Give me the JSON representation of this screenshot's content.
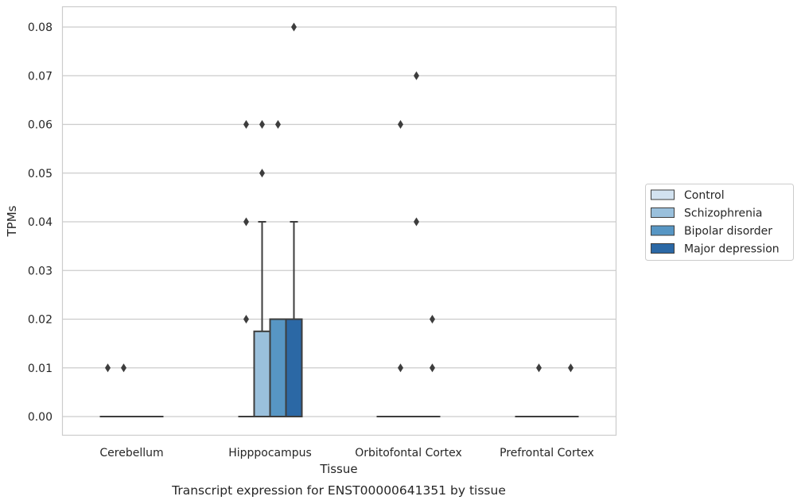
{
  "chart_data": {
    "type": "box",
    "title": "Transcript expression for ENST00000641351 by tissue",
    "xlabel": "Tissue",
    "ylabel": "TPMs",
    "categories": [
      "Cerebellum",
      "Hipppocampus",
      "Orbitofontal Cortex",
      "Prefrontal Cortex"
    ],
    "yticks": [
      "0.00",
      "0.01",
      "0.02",
      "0.03",
      "0.04",
      "0.05",
      "0.06",
      "0.07",
      "0.08"
    ],
    "ylim": [
      -0.004,
      0.084
    ],
    "grid": true,
    "legend_position": "right",
    "series": [
      {
        "name": "Control",
        "color": "#d2e2f0",
        "boxes": [
          {
            "q1": 0,
            "median": 0,
            "q3": 0,
            "whisker_low": 0,
            "whisker_high": 0,
            "outliers": [
              0.01
            ]
          },
          {
            "q1": 0,
            "median": 0,
            "q3": 0,
            "whisker_low": 0,
            "whisker_high": 0,
            "outliers": [
              0.02,
              0.04,
              0.06
            ]
          },
          {
            "q1": 0,
            "median": 0,
            "q3": 0,
            "whisker_low": 0,
            "whisker_high": 0,
            "outliers": []
          },
          {
            "q1": 0,
            "median": 0,
            "q3": 0,
            "whisker_low": 0,
            "whisker_high": 0,
            "outliers": []
          }
        ]
      },
      {
        "name": "Schizophrenia",
        "color": "#9ac0dc",
        "boxes": [
          {
            "q1": 0,
            "median": 0,
            "q3": 0,
            "whisker_low": 0,
            "whisker_high": 0,
            "outliers": [
              0.01
            ]
          },
          {
            "q1": 0,
            "median": 0,
            "q3": 0.0175,
            "whisker_low": 0,
            "whisker_high": 0.04,
            "outliers": [
              0.05,
              0.06
            ]
          },
          {
            "q1": 0,
            "median": 0,
            "q3": 0,
            "whisker_low": 0,
            "whisker_high": 0,
            "outliers": [
              0.01,
              0.06
            ]
          },
          {
            "q1": 0,
            "median": 0,
            "q3": 0,
            "whisker_low": 0,
            "whisker_high": 0,
            "outliers": [
              0.01
            ]
          }
        ]
      },
      {
        "name": "Bipolar disorder",
        "color": "#5796c4",
        "boxes": [
          {
            "q1": 0,
            "median": 0,
            "q3": 0,
            "whisker_low": 0,
            "whisker_high": 0,
            "outliers": []
          },
          {
            "q1": 0,
            "median": 0.02,
            "q3": 0.02,
            "whisker_low": 0,
            "whisker_high": 0.02,
            "outliers": [
              0.06
            ]
          },
          {
            "q1": 0,
            "median": 0,
            "q3": 0,
            "whisker_low": 0,
            "whisker_high": 0,
            "outliers": [
              0.04,
              0.07
            ]
          },
          {
            "q1": 0,
            "median": 0,
            "q3": 0,
            "whisker_low": 0,
            "whisker_high": 0,
            "outliers": []
          }
        ]
      },
      {
        "name": "Major depression",
        "color": "#2b68a5",
        "boxes": [
          {
            "q1": 0,
            "median": 0,
            "q3": 0,
            "whisker_low": 0,
            "whisker_high": 0,
            "outliers": []
          },
          {
            "q1": 0,
            "median": 0.02,
            "q3": 0.02,
            "whisker_low": 0,
            "whisker_high": 0.04,
            "outliers": [
              0.08
            ]
          },
          {
            "q1": 0,
            "median": 0,
            "q3": 0,
            "whisker_low": 0,
            "whisker_high": 0,
            "outliers": [
              0.01,
              0.02
            ]
          },
          {
            "q1": 0,
            "median": 0,
            "q3": 0,
            "whisker_low": 0,
            "whisker_high": 0,
            "outliers": [
              0.01
            ]
          }
        ]
      }
    ]
  }
}
